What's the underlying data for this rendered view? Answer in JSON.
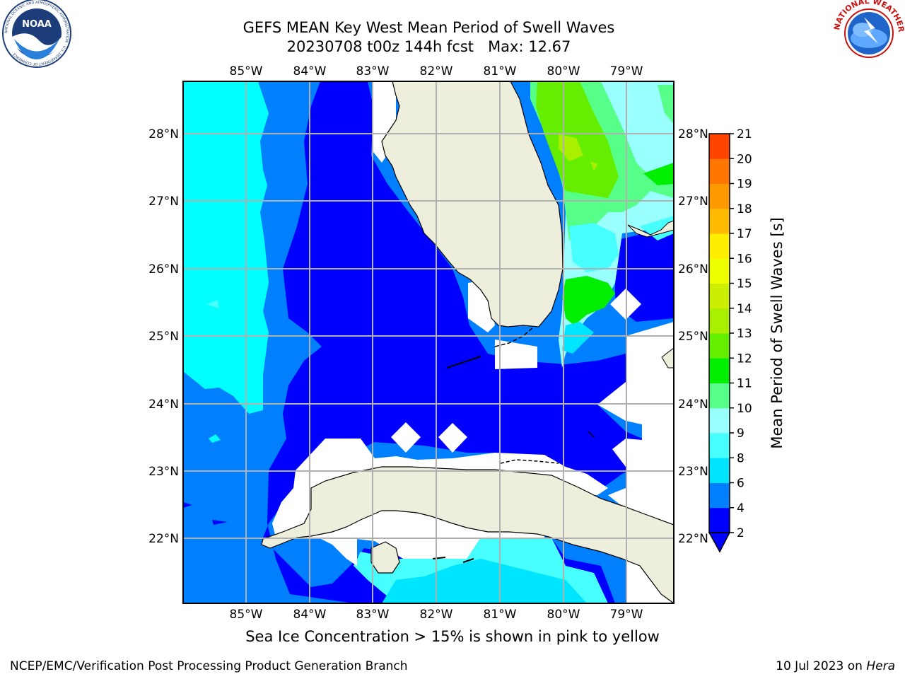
{
  "title": {
    "line1": "GEFS MEAN Key West Mean Period of Swell Waves",
    "line2": "20230708 t00z 144h fcst   Max: 12.67"
  },
  "logos": {
    "noaa": {
      "text": "NOAA",
      "ring_text": "NATIONAL OCEANIC AND ATMOSPHERIC ADMINISTRATION · U.S. DEPARTMENT OF COMMERCE ·"
    },
    "nws": {
      "ring_text": "NATIONAL WEATHER SERVICE"
    }
  },
  "map": {
    "lon_ticks": [
      "85°W",
      "84°W",
      "83°W",
      "82°W",
      "81°W",
      "80°W",
      "79°W"
    ],
    "lat_ticks": [
      "28°N",
      "27°N",
      "26°N",
      "25°N",
      "24°N",
      "23°N",
      "22°N"
    ],
    "colors": {
      "land": "#eeeedd",
      "coast": "#000000",
      "grid": "#b0b0b0"
    }
  },
  "colorbar": {
    "label": "Mean Period of Swell Waves [s]",
    "ticks": [
      "2",
      "4",
      "6",
      "8",
      "9",
      "10",
      "11",
      "12",
      "13",
      "14",
      "15",
      "16",
      "17",
      "18",
      "19",
      "20",
      "21"
    ],
    "colors": [
      "#0000ff",
      "#0080ff",
      "#00e5ff",
      "#48ffff",
      "#99ffff",
      "#55ff88",
      "#00ee00",
      "#66ee00",
      "#aaee00",
      "#ccee00",
      "#eeff00",
      "#ffee00",
      "#ffbb00",
      "#ff9900",
      "#ff7700",
      "#ff4400",
      "#ff0000"
    ]
  },
  "ice_note": "Sea Ice Concentration > 15% is shown in pink to yellow",
  "footer": {
    "left": "NCEP/EMC/Verification Post Processing Product Generation Branch",
    "date": "10 Jul 2023 on ",
    "host": "Hera"
  }
}
